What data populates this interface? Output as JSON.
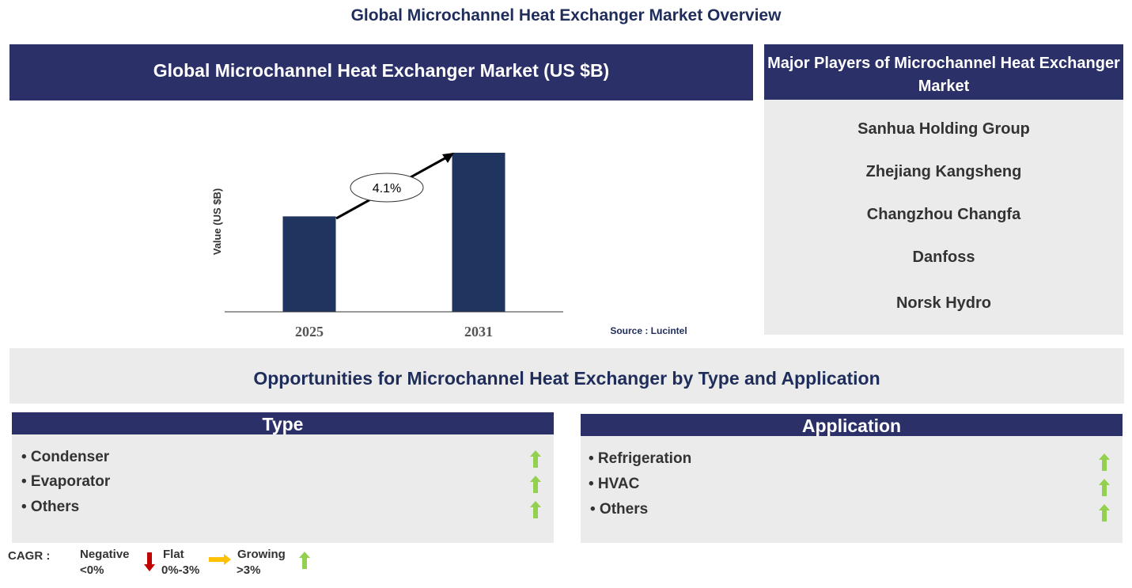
{
  "title": "Global Microchannel Heat Exchanger Market Overview",
  "chart_header": "Global Microchannel Heat Exchanger Market (US $B)",
  "chart_data": {
    "type": "bar",
    "categories": [
      "2025",
      "2031"
    ],
    "relative_values": [
      0.6,
      1.0
    ],
    "ylabel": "Value (US $B)",
    "annotation": "4.1%",
    "source": "Source : Lucintel",
    "bar_color": "#1f3560",
    "grid": false
  },
  "players": {
    "title": "Major Players of Microchannel Heat Exchanger Market",
    "items": [
      "Sanhua Holding Group",
      "Zhejiang Kangsheng",
      "Changzhou Changfa",
      "Danfoss",
      "Norsk Hydro"
    ]
  },
  "opportunities_title": "Opportunities for Microchannel Heat Exchanger by Type and Application",
  "type": {
    "title": "Type",
    "items": [
      "• Condenser",
      "• Evaporator",
      "• Others"
    ],
    "trend": [
      "growing",
      "growing",
      "growing"
    ]
  },
  "application": {
    "title": "Application",
    "items": [
      "• Refrigeration",
      "• HVAC",
      "• Others"
    ],
    "trend": [
      "growing",
      "growing",
      "growing"
    ]
  },
  "legend": {
    "label": "CAGR :",
    "negative": "Negative",
    "negative_range": "<0%",
    "flat": "Flat",
    "flat_range": "0%-3%",
    "growing": "Growing",
    "growing_range": ">3%",
    "colors": {
      "negative": "#c00000",
      "flat": "#ffc000",
      "growing": "#92d050"
    }
  }
}
